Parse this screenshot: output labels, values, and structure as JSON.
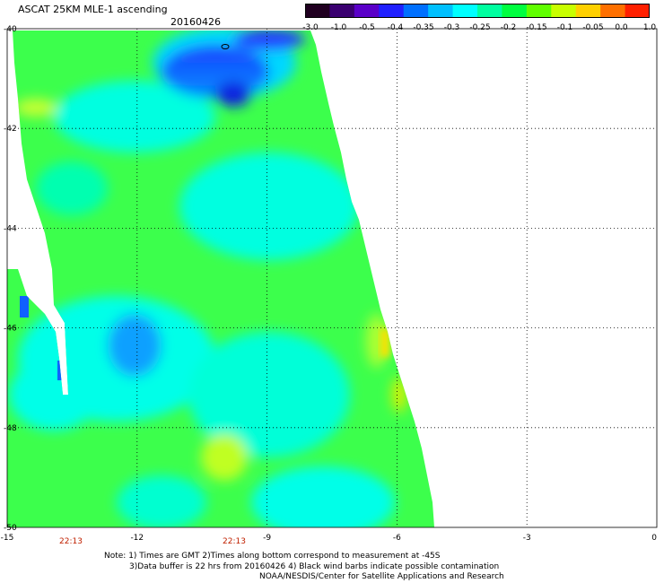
{
  "header": {
    "title": "ASCAT 25KM MLE-1 ascending",
    "date": "20160426"
  },
  "colorbar": {
    "labels": [
      "-3.0",
      "-1.0",
      "-0.5",
      "-0.4",
      "-0.35",
      "-0.3",
      "-0.25",
      "-0.2",
      "-0.15",
      "-0.1",
      "-0.05",
      "0.0",
      "1.0"
    ],
    "colors": [
      "#200020",
      "#3a0070",
      "#5a00c8",
      "#2020ff",
      "#0070ff",
      "#00c0ff",
      "#00ffff",
      "#00ffa0",
      "#00ff40",
      "#60ff00",
      "#c8ff00",
      "#ffd000",
      "#ff7000",
      "#ff2000"
    ]
  },
  "map": {
    "lat_labels": [
      "-40",
      "-42",
      "-44",
      "-46",
      "-48",
      "-50"
    ],
    "lon_labels": [
      "-15",
      "-12",
      "-9",
      "-6",
      "-3",
      "0"
    ],
    "time_labels": [
      "22:13",
      "22:13"
    ],
    "lat_range": [
      -50,
      -40
    ],
    "lon_range": [
      -15,
      0
    ]
  },
  "notes": {
    "line1": "Note: 1) Times are GMT 2)Times along bottom correspond to measurement at -45S",
    "line2": "3)Data buffer is 22 hrs from 20160426 4) Black wind barbs indicate possible contamination",
    "line3": "NOAA/NESDIS/Center for Satellite Applications and Research"
  }
}
